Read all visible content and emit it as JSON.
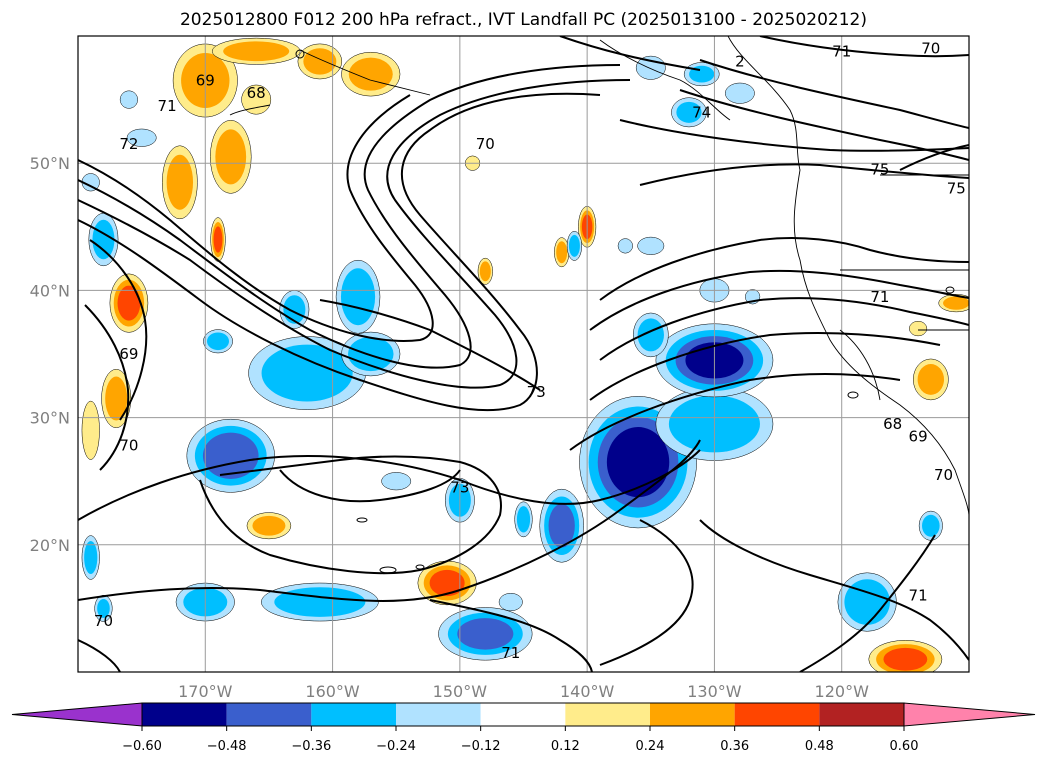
{
  "title": "2025012800 F012 200 hPa refract., IVT Landfall PC (2025013100 - 2025020212)",
  "map": {
    "lon_range": [
      -180,
      -110
    ],
    "lat_range": [
      10,
      60
    ],
    "lon_ticks": [
      {
        "value": -170,
        "label": "170°W"
      },
      {
        "value": -160,
        "label": "160°W"
      },
      {
        "value": -150,
        "label": "150°W"
      },
      {
        "value": -140,
        "label": "140°W"
      },
      {
        "value": -130,
        "label": "130°W"
      },
      {
        "value": -120,
        "label": "120°W"
      }
    ],
    "lat_ticks": [
      {
        "value": 20,
        "label": "20°N"
      },
      {
        "value": 30,
        "label": "30°N"
      },
      {
        "value": 40,
        "label": "40°N"
      },
      {
        "value": 50,
        "label": "50°N"
      }
    ],
    "grid": true,
    "contour_color": "#000000",
    "contour_labels": [
      {
        "text": "69",
        "lon": -170,
        "lat": 56.5
      },
      {
        "text": "68",
        "lon": -166,
        "lat": 55.5
      },
      {
        "text": "71",
        "lon": -173,
        "lat": 54.5
      },
      {
        "text": "72",
        "lon": -176,
        "lat": 51.5
      },
      {
        "text": "70",
        "lon": -148,
        "lat": 51.5
      },
      {
        "text": "74",
        "lon": -131,
        "lat": 54.0
      },
      {
        "text": "2",
        "lon": -128,
        "lat": 58.0
      },
      {
        "text": "71",
        "lon": -120,
        "lat": 58.8
      },
      {
        "text": "70",
        "lon": -113,
        "lat": 59.0
      },
      {
        "text": "75",
        "lon": -117,
        "lat": 49.5
      },
      {
        "text": "75",
        "lon": -111,
        "lat": 48.0
      },
      {
        "text": "71",
        "lon": -117,
        "lat": 39.5
      },
      {
        "text": "69",
        "lon": -176,
        "lat": 35.0
      },
      {
        "text": "70",
        "lon": -176,
        "lat": 27.8
      },
      {
        "text": "73",
        "lon": -144,
        "lat": 32.0
      },
      {
        "text": "73",
        "lon": -150,
        "lat": 24.5
      },
      {
        "text": "68",
        "lon": -116,
        "lat": 29.5
      },
      {
        "text": "69",
        "lon": -114,
        "lat": 28.5
      },
      {
        "text": "70",
        "lon": -112,
        "lat": 25.5
      },
      {
        "text": "71",
        "lon": -114,
        "lat": 16.0
      },
      {
        "text": "70",
        "lon": -178,
        "lat": 14.0
      },
      {
        "text": "71",
        "lon": -146,
        "lat": 11.5
      }
    ]
  },
  "colorbar": {
    "tick_labels": [
      "−0.60",
      "−0.48",
      "−0.36",
      "−0.24",
      "−0.12",
      "0.12",
      "0.24",
      "0.36",
      "0.48",
      "0.60"
    ],
    "colors": [
      "#9a32cd",
      "#00008b",
      "#3a5fcd",
      "#00bfff",
      "#b0e2ff",
      "#ffffff",
      "#ffec8b",
      "#ffa500",
      "#ff4500",
      "#b22222",
      "#ff82ab"
    ]
  },
  "shading": {
    "positive": [
      {
        "lon": -170,
        "lat": 56.5,
        "rx": 2.2,
        "ry": 2.5,
        "level": 0.3
      },
      {
        "lon": -166,
        "lat": 58.8,
        "rx": 3,
        "ry": 0.9,
        "level": 0.3
      },
      {
        "lon": -161,
        "lat": 58.0,
        "rx": 1.5,
        "ry": 1.2,
        "level": 0.3
      },
      {
        "lon": -157,
        "lat": 57.0,
        "rx": 2,
        "ry": 1.5,
        "level": 0.3
      },
      {
        "lon": -168,
        "lat": 50.5,
        "rx": 1.4,
        "ry": 2.5,
        "level": 0.3
      },
      {
        "lon": -166,
        "lat": 55.0,
        "rx": 1,
        "ry": 1,
        "level": 0.2
      },
      {
        "lon": -172,
        "lat": 48.5,
        "rx": 1.2,
        "ry": 2.5,
        "level": 0.3
      },
      {
        "lon": -169,
        "lat": 44.0,
        "rx": 0.5,
        "ry": 1.5,
        "level": 0.4
      },
      {
        "lon": -176,
        "lat": 39.0,
        "rx": 1.3,
        "ry": 2,
        "level": 0.4
      },
      {
        "lon": -177,
        "lat": 31.5,
        "rx": 1,
        "ry": 2,
        "level": 0.3
      },
      {
        "lon": -179,
        "lat": 29.0,
        "rx": 0.6,
        "ry": 2,
        "level": 0.2
      },
      {
        "lon": -149,
        "lat": 50.0,
        "rx": 0.5,
        "ry": 0.5,
        "level": 0.2
      },
      {
        "lon": -140,
        "lat": 45.0,
        "rx": 0.6,
        "ry": 1.4,
        "level": 0.4
      },
      {
        "lon": -142,
        "lat": 43.0,
        "rx": 0.5,
        "ry": 1,
        "level": 0.3
      },
      {
        "lon": -148,
        "lat": 41.5,
        "rx": 0.5,
        "ry": 0.9,
        "level": 0.3
      },
      {
        "lon": -165,
        "lat": 21.5,
        "rx": 1.5,
        "ry": 0.9,
        "level": 0.3
      },
      {
        "lon": -151,
        "lat": 17.0,
        "rx": 2,
        "ry": 1.5,
        "level": 0.4
      },
      {
        "lon": -113,
        "lat": 33.0,
        "rx": 1.2,
        "ry": 1.4,
        "level": 0.3
      },
      {
        "lon": -114,
        "lat": 37.0,
        "rx": 0.6,
        "ry": 0.5,
        "level": 0.2
      },
      {
        "lon": -111,
        "lat": 39.0,
        "rx": 1.2,
        "ry": 0.6,
        "level": 0.3
      },
      {
        "lon": -115,
        "lat": 11.0,
        "rx": 2.5,
        "ry": 1.3,
        "level": 0.4
      }
    ],
    "negative": [
      {
        "lon": -176,
        "lat": 55.0,
        "rx": 0.6,
        "ry": 0.6,
        "level": -0.2
      },
      {
        "lon": -175,
        "lat": 52.0,
        "rx": 1,
        "ry": 0.6,
        "level": -0.2
      },
      {
        "lon": -179,
        "lat": 48.5,
        "rx": 0.6,
        "ry": 0.6,
        "level": -0.2
      },
      {
        "lon": -178,
        "lat": 44.0,
        "rx": 1,
        "ry": 1.8,
        "level": -0.3
      },
      {
        "lon": -158,
        "lat": 39.5,
        "rx": 1.5,
        "ry": 2.5,
        "level": -0.35
      },
      {
        "lon": -163,
        "lat": 38.5,
        "rx": 1,
        "ry": 1.3,
        "level": -0.3
      },
      {
        "lon": -162,
        "lat": 33.5,
        "rx": 4,
        "ry": 2.5,
        "level": -0.35
      },
      {
        "lon": -157,
        "lat": 35.0,
        "rx": 2,
        "ry": 1.5,
        "level": -0.35
      },
      {
        "lon": -169,
        "lat": 36.0,
        "rx": 1,
        "ry": 0.8,
        "level": -0.3
      },
      {
        "lon": -168,
        "lat": 27.0,
        "rx": 3,
        "ry": 2.5,
        "level": -0.45
      },
      {
        "lon": -155,
        "lat": 25.0,
        "rx": 1,
        "ry": 0.6,
        "level": -0.2
      },
      {
        "lon": -150,
        "lat": 23.5,
        "rx": 1,
        "ry": 1.5,
        "level": -0.3
      },
      {
        "lon": -145,
        "lat": 22.0,
        "rx": 0.6,
        "ry": 1.2,
        "level": -0.3
      },
      {
        "lon": -142,
        "lat": 21.5,
        "rx": 1.5,
        "ry": 2.5,
        "level": -0.4
      },
      {
        "lon": -136,
        "lat": 26.5,
        "rx": 4,
        "ry": 4.5,
        "level": -0.55
      },
      {
        "lon": -130,
        "lat": 29.5,
        "rx": 4,
        "ry": 2.5,
        "level": -0.35
      },
      {
        "lon": -130,
        "lat": 34.5,
        "rx": 4,
        "ry": 2.5,
        "level": -0.5
      },
      {
        "lon": -135,
        "lat": 36.5,
        "rx": 1.2,
        "ry": 1.5,
        "level": -0.3
      },
      {
        "lon": -130,
        "lat": 40.0,
        "rx": 1,
        "ry": 0.8,
        "level": -0.2
      },
      {
        "lon": -127,
        "lat": 39.5,
        "rx": 0.5,
        "ry": 0.5,
        "level": -0.2
      },
      {
        "lon": -135,
        "lat": 43.5,
        "rx": 0.9,
        "ry": 0.6,
        "level": -0.2
      },
      {
        "lon": -137,
        "lat": 43.5,
        "rx": 0.5,
        "ry": 0.5,
        "level": -0.2
      },
      {
        "lon": -141,
        "lat": 43.5,
        "rx": 0.5,
        "ry": 1,
        "level": -0.3
      },
      {
        "lon": -132,
        "lat": 54.0,
        "rx": 1.2,
        "ry": 1,
        "level": -0.25
      },
      {
        "lon": -128,
        "lat": 55.5,
        "rx": 1,
        "ry": 0.7,
        "level": -0.2
      },
      {
        "lon": -135,
        "lat": 57.5,
        "rx": 1,
        "ry": 0.8,
        "level": -0.2
      },
      {
        "lon": -131,
        "lat": 57.0,
        "rx": 1.2,
        "ry": 0.8,
        "level": -0.25
      },
      {
        "lon": -170,
        "lat": 15.5,
        "rx": 2,
        "ry": 1.3,
        "level": -0.3
      },
      {
        "lon": -161,
        "lat": 15.5,
        "rx": 4,
        "ry": 1.3,
        "level": -0.35
      },
      {
        "lon": -148,
        "lat": 13.0,
        "rx": 3.2,
        "ry": 1.8,
        "level": -0.4
      },
      {
        "lon": -146,
        "lat": 15.5,
        "rx": 0.8,
        "ry": 0.6,
        "level": -0.2
      },
      {
        "lon": -118,
        "lat": 15.5,
        "rx": 2,
        "ry": 2,
        "level": -0.35
      },
      {
        "lon": -113,
        "lat": 21.5,
        "rx": 0.8,
        "ry": 1,
        "level": -0.3
      },
      {
        "lon": -179,
        "lat": 19.0,
        "rx": 0.6,
        "ry": 1.5,
        "level": -0.3
      },
      {
        "lon": -178,
        "lat": 15.0,
        "rx": 0.6,
        "ry": 0.9,
        "level": -0.25
      }
    ]
  }
}
